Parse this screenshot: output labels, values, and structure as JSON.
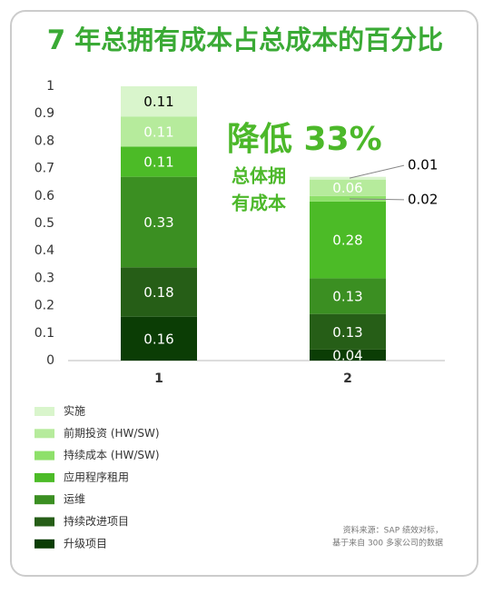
{
  "chart_data": {
    "type": "stacked_bar",
    "title": "7 年总拥有成本占总成本的百分比",
    "categories": [
      "1",
      "2"
    ],
    "series": [
      {
        "name": "实施",
        "color": "#d9f5cc",
        "values": [
          0.11,
          0.01
        ]
      },
      {
        "name": "前期投资 (HW/SW)",
        "color": "#b6eb9c",
        "values": [
          0.11,
          0.06
        ]
      },
      {
        "name": "持续成本 (HW/SW)",
        "color": "#8ee06a",
        "values": [
          0,
          0.02
        ]
      },
      {
        "name": "应用程序租用",
        "color": "#4cbb27",
        "values": [
          0.11,
          0.28
        ]
      },
      {
        "name": "运维",
        "color": "#3b8f22",
        "values": [
          0.33,
          0.13
        ]
      },
      {
        "name": "持续改进项目",
        "color": "#265e17",
        "values": [
          0.18,
          0.13
        ]
      },
      {
        "name": "升级项目",
        "color": "#0b3d05",
        "values": [
          0.16,
          0.04
        ]
      }
    ],
    "ylim": [
      0,
      1
    ],
    "yticks": [
      0,
      0.1,
      0.2,
      0.3,
      0.4,
      0.5,
      0.6,
      0.7,
      0.8,
      0.9,
      1
    ],
    "annotations": [
      "降低 33%",
      "总体拥",
      "有成本"
    ],
    "source": [
      "资料来源：SAP 绩效对标，",
      "基于来自 300 多家公司的数据"
    ]
  }
}
